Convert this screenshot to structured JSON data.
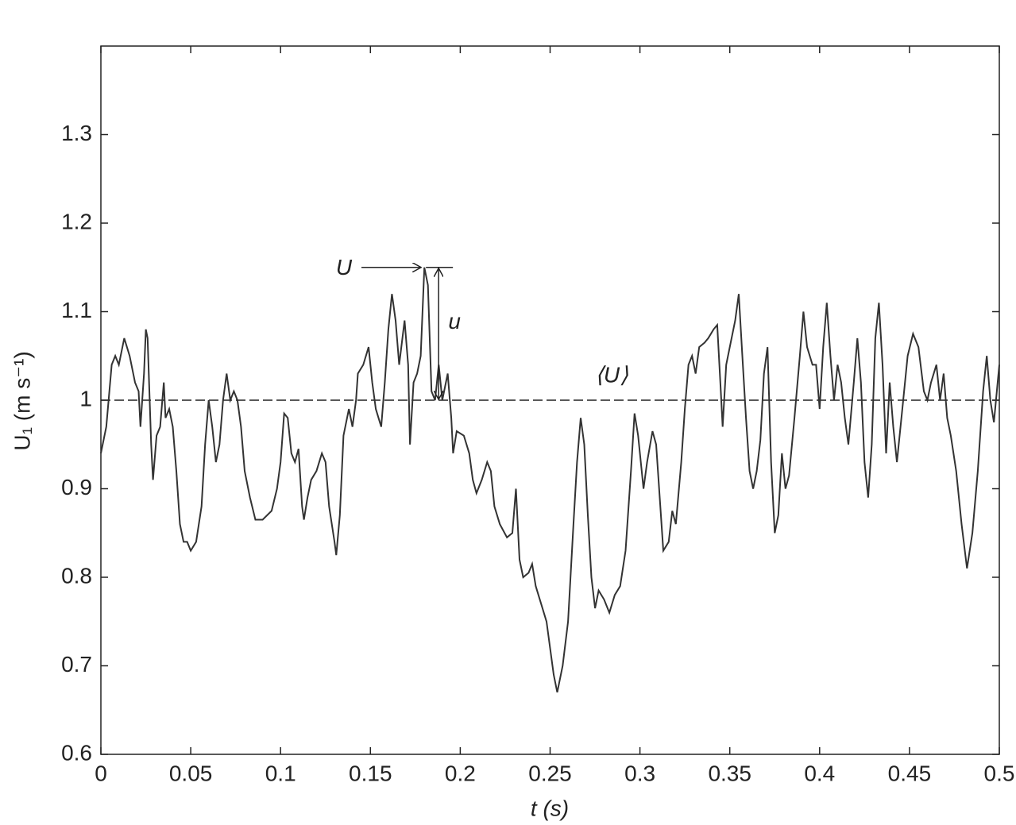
{
  "chart_data": {
    "type": "line",
    "xlabel": "t (s)",
    "ylabel": "U₁ (m s⁻¹)",
    "xlim": [
      0,
      0.5
    ],
    "ylim": [
      0.6,
      1.4
    ],
    "xticks": [
      0,
      0.05,
      0.1,
      0.15,
      0.2,
      0.25,
      0.3,
      0.35,
      0.4,
      0.45,
      0.5
    ],
    "yticks": [
      0.6,
      0.7,
      0.8,
      0.9,
      1,
      1.1,
      1.2,
      1.3
    ],
    "grid": false,
    "mean_line": 1,
    "annotations": [
      "U",
      "u",
      "⟨U⟩"
    ],
    "x": [
      0,
      0.003,
      0.006,
      0.008,
      0.01,
      0.013,
      0.016,
      0.019,
      0.021,
      0.022,
      0.024,
      0.025,
      0.026,
      0.028,
      0.029,
      0.031,
      0.033,
      0.035,
      0.036,
      0.038,
      0.04,
      0.042,
      0.044,
      0.046,
      0.048,
      0.05,
      0.053,
      0.056,
      0.058,
      0.06,
      0.062,
      0.064,
      0.066,
      0.068,
      0.07,
      0.072,
      0.074,
      0.076,
      0.078,
      0.08,
      0.083,
      0.086,
      0.09,
      0.095,
      0.098,
      0.1,
      0.102,
      0.104,
      0.106,
      0.108,
      0.11,
      0.112,
      0.113,
      0.115,
      0.117,
      0.12,
      0.123,
      0.125,
      0.127,
      0.13,
      0.131,
      0.133,
      0.135,
      0.138,
      0.14,
      0.142,
      0.143,
      0.146,
      0.149,
      0.151,
      0.153,
      0.156,
      0.158,
      0.16,
      0.162,
      0.164,
      0.166,
      0.169,
      0.171,
      0.172,
      0.174,
      0.176,
      0.178,
      0.18,
      0.182,
      0.184,
      0.186,
      0.188,
      0.19,
      0.193,
      0.195,
      0.196,
      0.198,
      0.202,
      0.205,
      0.207,
      0.209,
      0.212,
      0.215,
      0.217,
      0.219,
      0.222,
      0.226,
      0.229,
      0.231,
      0.233,
      0.235,
      0.238,
      0.24,
      0.242,
      0.245,
      0.248,
      0.25,
      0.252,
      0.254,
      0.257,
      0.26,
      0.263,
      0.265,
      0.267,
      0.269,
      0.271,
      0.273,
      0.275,
      0.277,
      0.28,
      0.283,
      0.286,
      0.289,
      0.292,
      0.295,
      0.297,
      0.299,
      0.302,
      0.304,
      0.307,
      0.309,
      0.311,
      0.313,
      0.316,
      0.318,
      0.32,
      0.323,
      0.325,
      0.327,
      0.329,
      0.331,
      0.333,
      0.336,
      0.338,
      0.341,
      0.343,
      0.345,
      0.346,
      0.348,
      0.35,
      0.353,
      0.355,
      0.357,
      0.359,
      0.361,
      0.363,
      0.365,
      0.367,
      0.369,
      0.371,
      0.373,
      0.375,
      0.377,
      0.379,
      0.381,
      0.383,
      0.386,
      0.389,
      0.391,
      0.393,
      0.396,
      0.398,
      0.4,
      0.402,
      0.404,
      0.406,
      0.408,
      0.41,
      0.412,
      0.414,
      0.416,
      0.419,
      0.421,
      0.423,
      0.425,
      0.427,
      0.429,
      0.431,
      0.433,
      0.435,
      0.437,
      0.439,
      0.441,
      0.443,
      0.446,
      0.449,
      0.452,
      0.455,
      0.458,
      0.46,
      0.462,
      0.465,
      0.467,
      0.469,
      0.471,
      0.473,
      0.476,
      0.479,
      0.482,
      0.485,
      0.488,
      0.491,
      0.493,
      0.495,
      0.497,
      0.5
    ],
    "series": [
      {
        "color": "#333333",
        "values": [
          0.94,
          0.97,
          1.04,
          1.05,
          1.04,
          1.07,
          1.05,
          1.02,
          1.01,
          0.97,
          1.03,
          1.08,
          1.07,
          0.95,
          0.91,
          0.96,
          0.97,
          1.02,
          0.98,
          0.99,
          0.97,
          0.92,
          0.86,
          0.84,
          0.84,
          0.83,
          0.84,
          0.88,
          0.95,
          1.0,
          0.97,
          0.93,
          0.95,
          1.0,
          1.03,
          1.0,
          1.01,
          1.0,
          0.97,
          0.92,
          0.89,
          0.865,
          0.865,
          0.875,
          0.9,
          0.93,
          0.985,
          0.98,
          0.94,
          0.93,
          0.945,
          0.88,
          0.865,
          0.89,
          0.91,
          0.92,
          0.94,
          0.93,
          0.88,
          0.84,
          0.825,
          0.87,
          0.96,
          0.99,
          0.97,
          1.0,
          1.03,
          1.04,
          1.06,
          1.02,
          0.99,
          0.97,
          1.02,
          1.08,
          1.12,
          1.09,
          1.04,
          1.09,
          1.04,
          0.95,
          1.02,
          1.03,
          1.05,
          1.15,
          1.13,
          1.01,
          1.0,
          1.04,
          1.0,
          1.03,
          0.98,
          0.94,
          0.965,
          0.96,
          0.94,
          0.91,
          0.895,
          0.91,
          0.93,
          0.92,
          0.88,
          0.86,
          0.845,
          0.85,
          0.9,
          0.82,
          0.8,
          0.805,
          0.815,
          0.79,
          0.77,
          0.75,
          0.72,
          0.69,
          0.67,
          0.7,
          0.75,
          0.86,
          0.93,
          0.98,
          0.95,
          0.87,
          0.8,
          0.765,
          0.785,
          0.775,
          0.76,
          0.78,
          0.79,
          0.83,
          0.92,
          0.985,
          0.96,
          0.9,
          0.93,
          0.965,
          0.95,
          0.89,
          0.83,
          0.84,
          0.875,
          0.86,
          0.93,
          0.99,
          1.04,
          1.05,
          1.03,
          1.06,
          1.065,
          1.07,
          1.08,
          1.085,
          1.01,
          0.97,
          1.04,
          1.06,
          1.09,
          1.12,
          1.05,
          0.98,
          0.92,
          0.9,
          0.92,
          0.955,
          1.03,
          1.06,
          0.93,
          0.85,
          0.87,
          0.94,
          0.9,
          0.915,
          0.98,
          1.05,
          1.1,
          1.06,
          1.04,
          1.04,
          0.99,
          1.06,
          1.11,
          1.05,
          1.0,
          1.04,
          1.02,
          0.98,
          0.95,
          1.02,
          1.07,
          1.02,
          0.93,
          0.89,
          0.95,
          1.07,
          1.11,
          1.04,
          0.94,
          1.02,
          0.97,
          0.93,
          0.99,
          1.05,
          1.075,
          1.06,
          1.01,
          1.0,
          1.02,
          1.04,
          1.0,
          1.03,
          0.98,
          0.96,
          0.92,
          0.86,
          0.81,
          0.85,
          0.92,
          1.01,
          1.05,
          1.0,
          0.975,
          1.04
        ]
      }
    ]
  }
}
